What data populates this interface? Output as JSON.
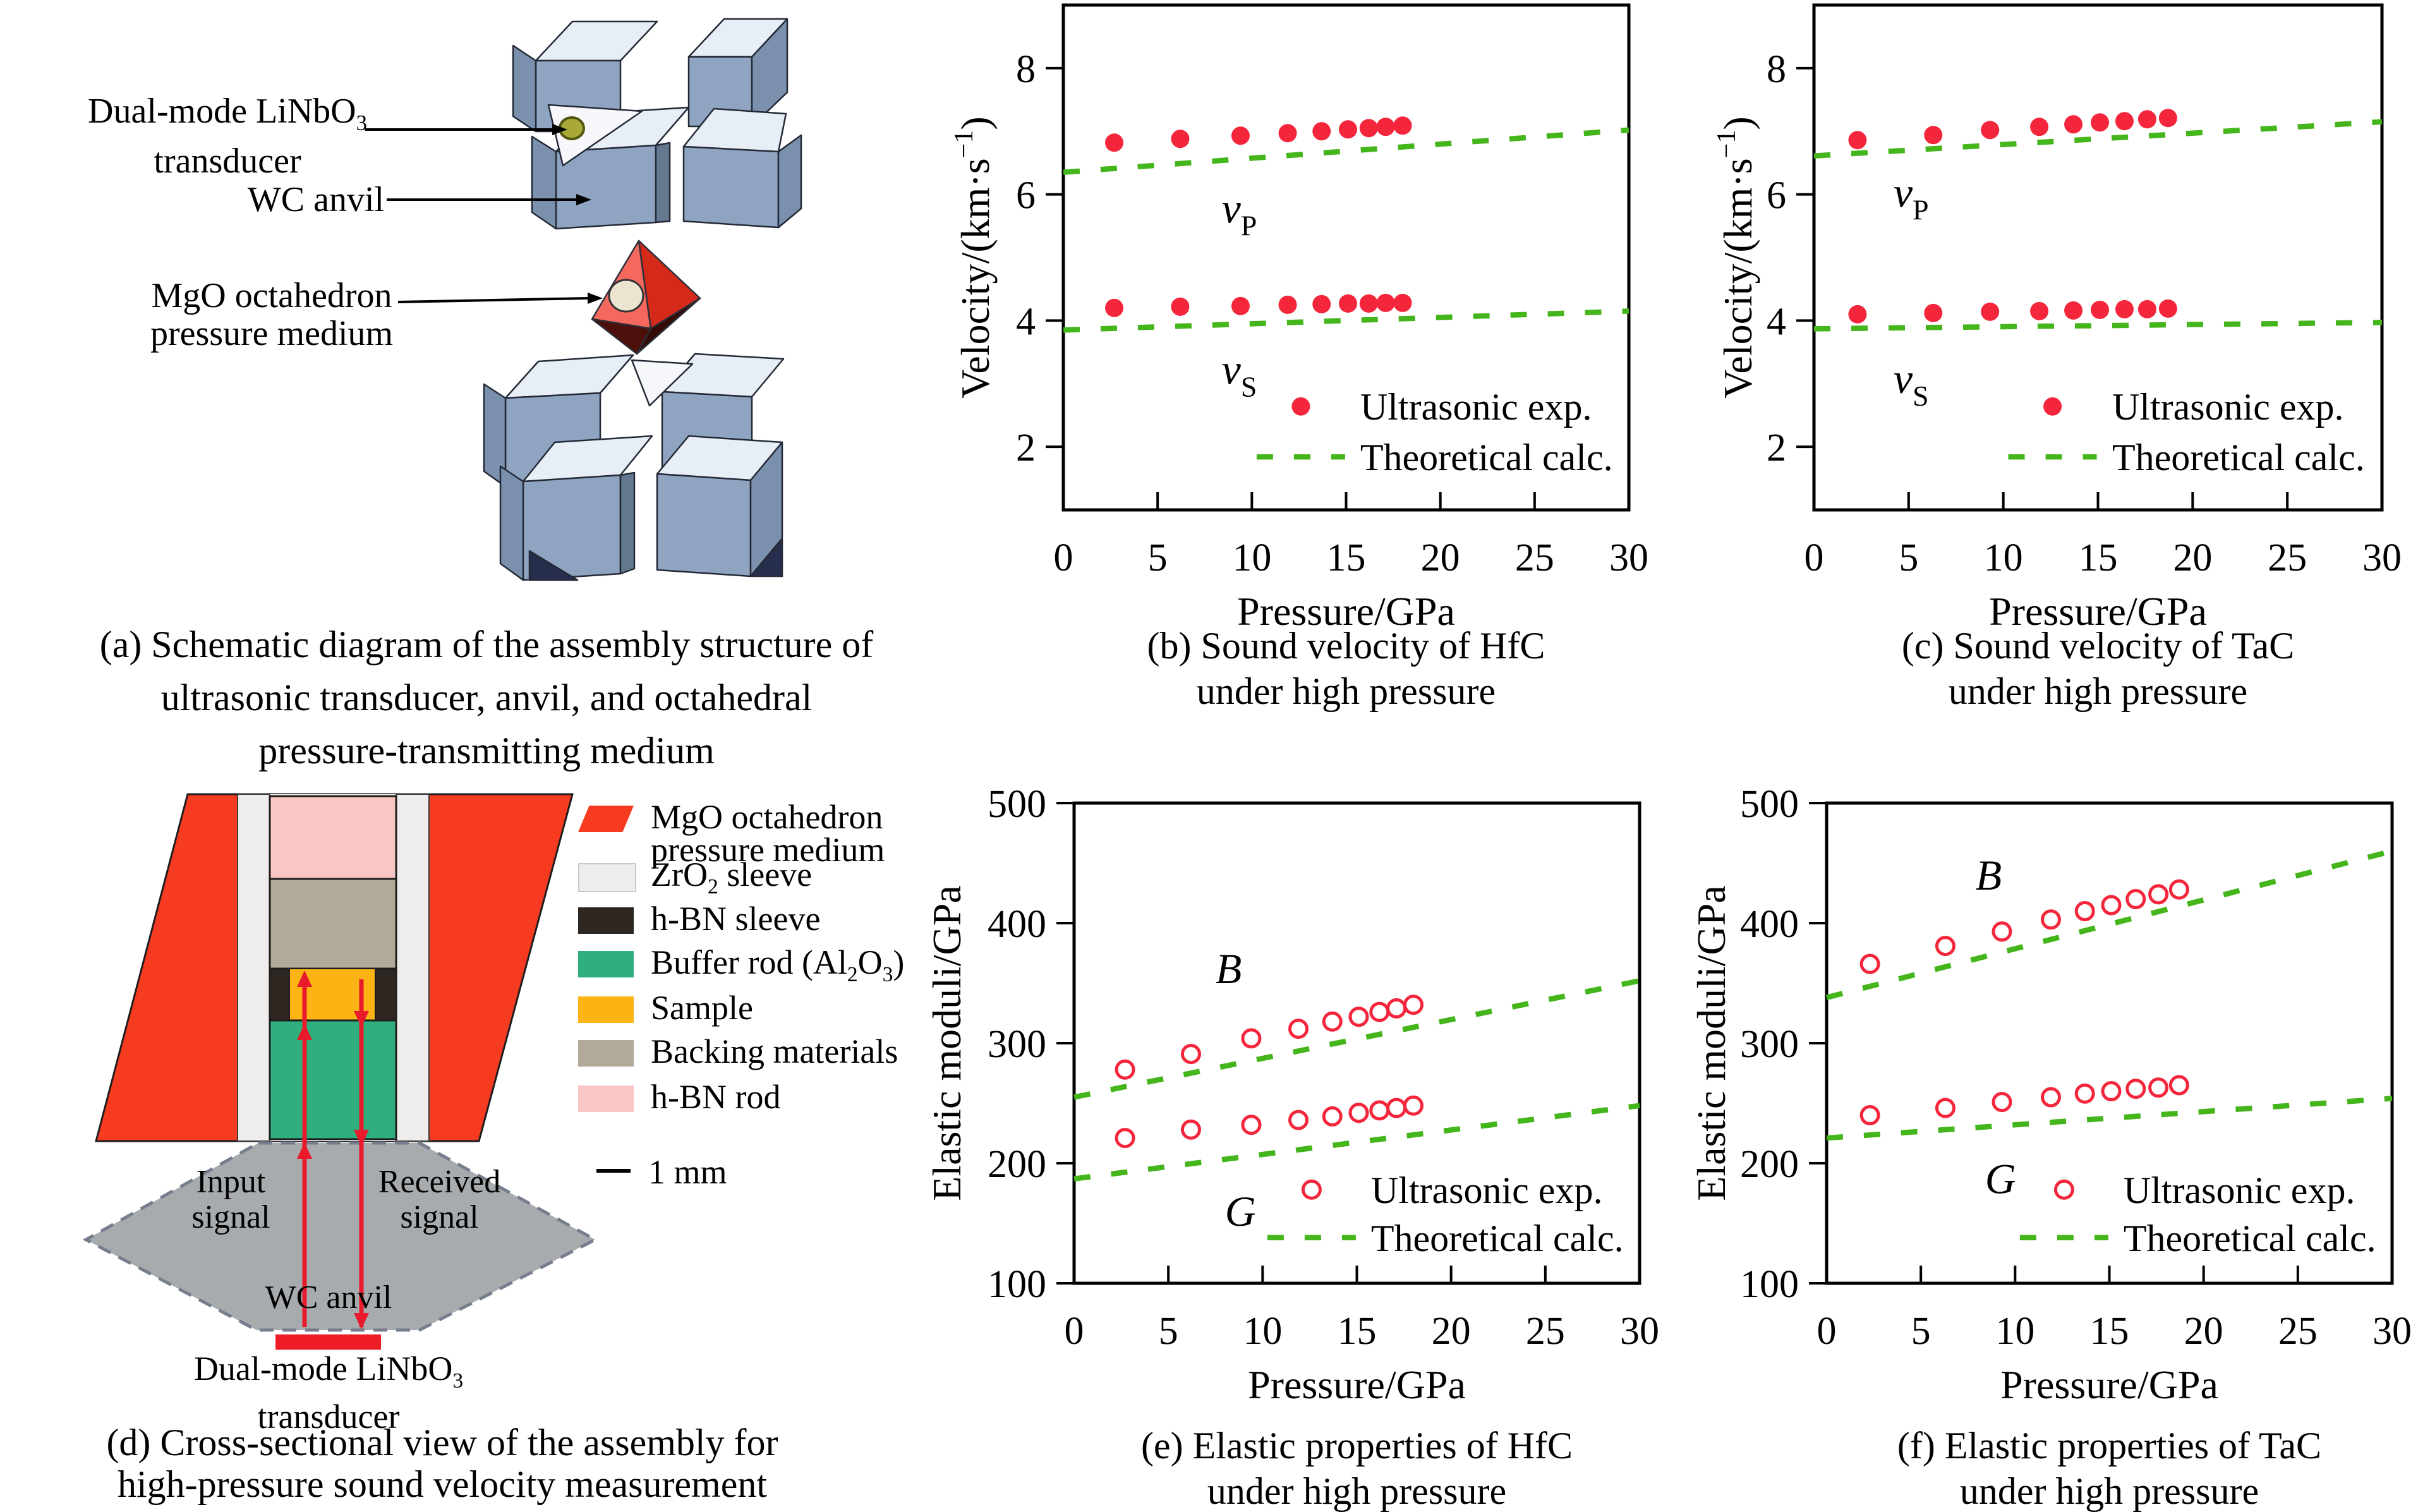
{
  "style": {
    "exp_red": "#f4263b",
    "calc_green": "#45b51c",
    "anvil_top": "#e8eef6",
    "anvil_front": "#8fa4c0",
    "anvil_side": "#7a90ac",
    "octahedron_red": "#d52a19",
    "transducer_olive": "#a8a939"
  },
  "panels": {
    "a": {
      "diagram_labels": {
        "dual_mode_line1": [
          {
            "t": "Dual-mode LiNbO"
          },
          {
            "t": "3",
            "s": "sub"
          }
        ],
        "dual_mode_line2": [
          {
            "t": "transducer"
          }
        ],
        "wc_anvil": [
          {
            "t": "WC anvil"
          }
        ],
        "mgo_line1": [
          {
            "t": "MgO octahedron"
          }
        ],
        "mgo_line2": [
          {
            "t": "pressure medium"
          }
        ]
      },
      "caption": [
        "(a) Schematic diagram of the assembly structure of",
        "ultrasonic transducer, anvil, and octahedral",
        "pressure-transmitting medium"
      ]
    },
    "d": {
      "legend": [
        {
          "name": "mgo-octahedron",
          "color": "#f63b21",
          "shape": "parallelogram",
          "lines": [
            [
              {
                "t": "MgO octahedron"
              }
            ],
            [
              {
                "t": "pressure medium"
              }
            ]
          ]
        },
        {
          "name": "zro2-sleeve",
          "color": "#efedec",
          "shape": "rect",
          "lines": [
            [
              {
                "t": "ZrO"
              },
              {
                "t": "2",
                "s": "sub"
              },
              {
                "t": " sleeve"
              }
            ]
          ]
        },
        {
          "name": "hbn-sleeve",
          "color": "#2e2721",
          "shape": "rect",
          "lines": [
            [
              {
                "t": "h-BN sleeve"
              }
            ]
          ]
        },
        {
          "name": "buffer-rod",
          "color": "#2fae7e",
          "shape": "rect",
          "lines": [
            [
              {
                "t": "Buffer rod (Al"
              },
              {
                "t": "2",
                "s": "sub"
              },
              {
                "t": "O"
              },
              {
                "t": "3",
                "s": "sub"
              },
              {
                "t": ")"
              }
            ]
          ]
        },
        {
          "name": "sample",
          "color": "#fcb414",
          "shape": "rect",
          "lines": [
            [
              {
                "t": "Sample"
              }
            ]
          ]
        },
        {
          "name": "backing-materials",
          "color": "#b2aa99",
          "shape": "rect",
          "lines": [
            [
              {
                "t": "Backing materials"
              }
            ]
          ]
        },
        {
          "name": "hbn-rod",
          "color": "#f9c6c4",
          "shape": "rect",
          "lines": [
            [
              {
                "t": "h-BN rod"
              }
            ]
          ]
        }
      ],
      "labels": {
        "input_line1": "Input",
        "input_line2": "signal",
        "received_line1": "Received",
        "received_line2": "signal",
        "wc_anvil": "WC anvil",
        "transducer_line1": [
          {
            "t": "Dual-mode LiNbO"
          },
          {
            "t": "3",
            "s": "sub"
          }
        ],
        "transducer_line2": [
          {
            "t": "transducer"
          }
        ]
      },
      "scale_label": "1 mm",
      "caption": [
        "(d) Cross-sectional view of the assembly for",
        "high-pressure sound velocity measurement"
      ]
    }
  },
  "chart_data": [
    {
      "id": "b",
      "type": "scatter",
      "material": "HfC",
      "caption": [
        "(b) Sound velocity of HfC",
        "under high pressure"
      ],
      "xlabel": "Pressure/GPa",
      "ylabel_segments": [
        {
          "t": "Velocity/(km·s"
        },
        {
          "t": "−1",
          "s": "sup"
        },
        {
          "t": ")"
        }
      ],
      "xlim": [
        0,
        30
      ],
      "ylim": [
        1,
        9
      ],
      "xticks": [
        0,
        5,
        10,
        15,
        20,
        25,
        30
      ],
      "yticks": [
        2,
        4,
        6,
        8
      ],
      "x": [
        2.7,
        6.2,
        9.4,
        11.9,
        13.7,
        15.1,
        16.2,
        17.1,
        18.0
      ],
      "series": [
        {
          "name": "vP",
          "marker": "filled",
          "label": [
            {
              "t": "v",
              "s": "i"
            },
            {
              "t": "P",
              "s": "sub"
            }
          ],
          "label_at": [
            8.4,
            5.55
          ],
          "values": [
            6.82,
            6.88,
            6.93,
            6.97,
            7.0,
            7.03,
            7.05,
            7.07,
            7.09
          ]
        },
        {
          "name": "vS",
          "marker": "filled",
          "label": [
            {
              "t": "v",
              "s": "i"
            },
            {
              "t": "S",
              "s": "sub"
            }
          ],
          "label_at": [
            8.4,
            3.0
          ],
          "values": [
            4.2,
            4.22,
            4.23,
            4.25,
            4.26,
            4.27,
            4.27,
            4.28,
            4.28
          ]
        }
      ],
      "theory_lines": [
        {
          "name": "vP_calc",
          "from": [
            0,
            6.35
          ],
          "to": [
            30,
            7.02
          ]
        },
        {
          "name": "vS_calc",
          "from": [
            0,
            3.85
          ],
          "to": [
            30,
            4.15
          ]
        }
      ],
      "legend": [
        {
          "marker": "filled",
          "label": "Ultrasonic exp."
        },
        {
          "marker": "dash",
          "label": "Theoretical calc."
        }
      ]
    },
    {
      "id": "c",
      "type": "scatter",
      "material": "TaC",
      "caption": [
        "(c) Sound velocity of TaC",
        "under high pressure"
      ],
      "xlabel": "Pressure/GPa",
      "ylabel_segments": [
        {
          "t": "Velocity/(km·s"
        },
        {
          "t": "−1",
          "s": "sup"
        },
        {
          "t": ")"
        }
      ],
      "xlim": [
        0,
        30
      ],
      "ylim": [
        1,
        9
      ],
      "xticks": [
        0,
        5,
        10,
        15,
        20,
        25,
        30
      ],
      "yticks": [
        2,
        4,
        6,
        8
      ],
      "x": [
        2.3,
        6.3,
        9.3,
        11.9,
        13.7,
        15.1,
        16.4,
        17.6,
        18.7
      ],
      "series": [
        {
          "name": "vP",
          "marker": "filled",
          "label": [
            {
              "t": "v",
              "s": "i"
            },
            {
              "t": "P",
              "s": "sub"
            }
          ],
          "label_at": [
            4.2,
            5.8
          ],
          "values": [
            6.86,
            6.94,
            7.02,
            7.07,
            7.11,
            7.14,
            7.16,
            7.19,
            7.21
          ]
        },
        {
          "name": "vS",
          "marker": "filled",
          "label": [
            {
              "t": "v",
              "s": "i"
            },
            {
              "t": "S",
              "s": "sub"
            }
          ],
          "label_at": [
            4.2,
            2.85
          ],
          "values": [
            4.1,
            4.12,
            4.14,
            4.15,
            4.16,
            4.17,
            4.18,
            4.18,
            4.19
          ]
        }
      ],
      "theory_lines": [
        {
          "name": "vP_calc",
          "from": [
            0,
            6.61
          ],
          "to": [
            30,
            7.15
          ]
        },
        {
          "name": "vS_calc",
          "from": [
            0,
            3.87
          ],
          "to": [
            30,
            3.97
          ]
        }
      ],
      "legend": [
        {
          "marker": "filled",
          "label": "Ultrasonic exp."
        },
        {
          "marker": "dash",
          "label": "Theoretical calc."
        }
      ]
    },
    {
      "id": "e",
      "type": "scatter",
      "material": "HfC",
      "caption": [
        "(e) Elastic properties of HfC",
        "under high pressure"
      ],
      "xlabel": "Pressure/GPa",
      "ylabel_segments": [
        {
          "t": "Elastic moduli/GPa"
        }
      ],
      "xlim": [
        0,
        30
      ],
      "ylim": [
        100,
        500
      ],
      "xticks": [
        0,
        5,
        10,
        15,
        20,
        25,
        30
      ],
      "yticks": [
        100,
        200,
        300,
        400,
        500
      ],
      "x": [
        2.7,
        6.2,
        9.4,
        11.9,
        13.7,
        15.1,
        16.2,
        17.1,
        18.0
      ],
      "series": [
        {
          "name": "B",
          "marker": "open",
          "label": [
            {
              "t": "B",
              "s": "i"
            }
          ],
          "label_at": [
            7.5,
            350
          ],
          "values": [
            278,
            291,
            304,
            312,
            318,
            322,
            326,
            329,
            332
          ]
        },
        {
          "name": "G",
          "marker": "open",
          "label": [
            {
              "t": "G",
              "s": "i"
            }
          ],
          "label_at": [
            8.0,
            148
          ],
          "values": [
            221,
            228,
            232,
            236,
            239,
            242,
            244,
            246,
            248
          ]
        }
      ],
      "theory_lines": [
        {
          "name": "B_calc",
          "from": [
            0,
            255
          ],
          "to": [
            30,
            352
          ]
        },
        {
          "name": "G_calc",
          "from": [
            0,
            187
          ],
          "to": [
            30,
            248
          ]
        }
      ],
      "legend": [
        {
          "marker": "open",
          "label": "Ultrasonic exp."
        },
        {
          "marker": "dash",
          "label": "Theoretical calc."
        }
      ]
    },
    {
      "id": "f",
      "type": "scatter",
      "material": "TaC",
      "caption": [
        "(f) Elastic properties of TaC",
        "under high pressure"
      ],
      "xlabel": "Pressure/GPa",
      "ylabel_segments": [
        {
          "t": "Elastic moduli/GPa"
        }
      ],
      "xlim": [
        0,
        30
      ],
      "ylim": [
        100,
        500
      ],
      "xticks": [
        0,
        5,
        10,
        15,
        20,
        25,
        30
      ],
      "yticks": [
        100,
        200,
        300,
        400,
        500
      ],
      "x": [
        2.3,
        6.3,
        9.3,
        11.9,
        13.7,
        15.1,
        16.4,
        17.6,
        18.7
      ],
      "series": [
        {
          "name": "B",
          "marker": "open",
          "label": [
            {
              "t": "B",
              "s": "i"
            }
          ],
          "label_at": [
            7.9,
            428
          ],
          "values": [
            366,
            381,
            393,
            403,
            410,
            415,
            420,
            424,
            428
          ]
        },
        {
          "name": "G",
          "marker": "open",
          "label": [
            {
              "t": "G",
              "s": "i"
            }
          ],
          "label_at": [
            8.4,
            175
          ],
          "values": [
            240,
            246,
            251,
            255,
            258,
            260,
            262,
            263,
            265
          ]
        }
      ],
      "theory_lines": [
        {
          "name": "B_calc",
          "from": [
            0,
            338
          ],
          "to": [
            30,
            460
          ]
        },
        {
          "name": "G_calc",
          "from": [
            0,
            221
          ],
          "to": [
            30,
            254
          ]
        }
      ],
      "legend": [
        {
          "marker": "open",
          "label": "Ultrasonic exp."
        },
        {
          "marker": "dash",
          "label": "Theoretical calc."
        }
      ]
    }
  ]
}
